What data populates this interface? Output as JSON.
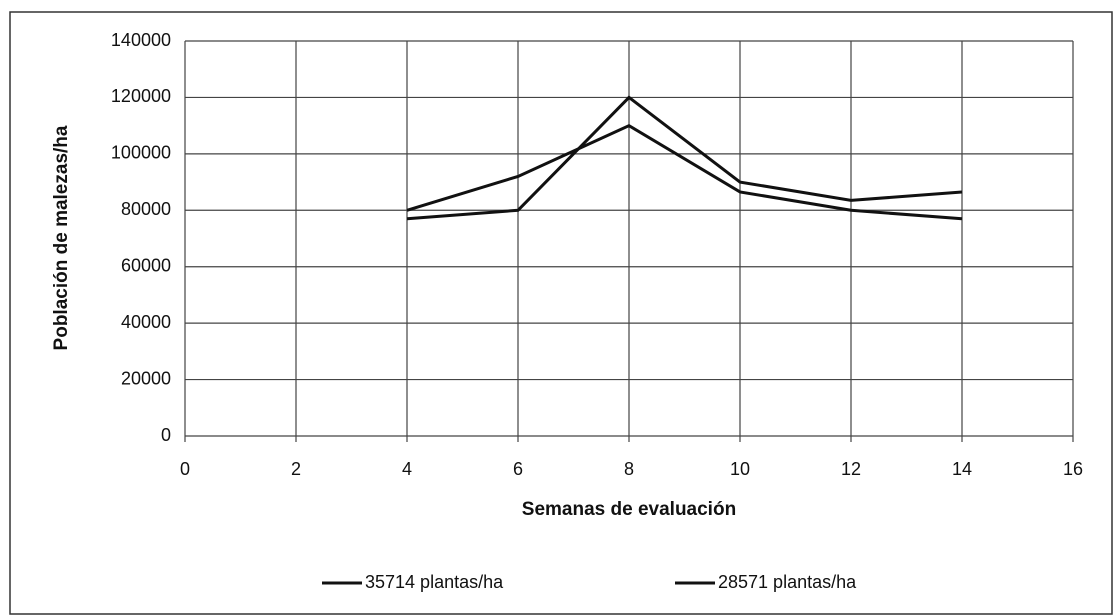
{
  "chart_data": {
    "type": "line",
    "x_label": "Semanas de evaluación",
    "y_label": "Población de malezas/ha",
    "series": [
      {
        "name": "35714 plantas/ha",
        "color": "#111111",
        "x": [
          4,
          6,
          8,
          10,
          12,
          14
        ],
        "values": [
          80000,
          92000,
          110000,
          86500,
          80000,
          77000
        ]
      },
      {
        "name": "28571 plantas/ha",
        "color": "#111111",
        "x": [
          4,
          6,
          8,
          10,
          12,
          14
        ],
        "values": [
          77000,
          80000,
          120000,
          90000,
          83500,
          86500
        ]
      }
    ],
    "xlim": [
      0,
      16
    ],
    "xticks": [
      0,
      2,
      4,
      6,
      8,
      10,
      12,
      14,
      16
    ],
    "ylim": [
      0,
      140000
    ],
    "yticks": [
      0,
      20000,
      40000,
      60000,
      80000,
      100000,
      120000,
      140000
    ],
    "grid": true,
    "legend": "bottom"
  }
}
